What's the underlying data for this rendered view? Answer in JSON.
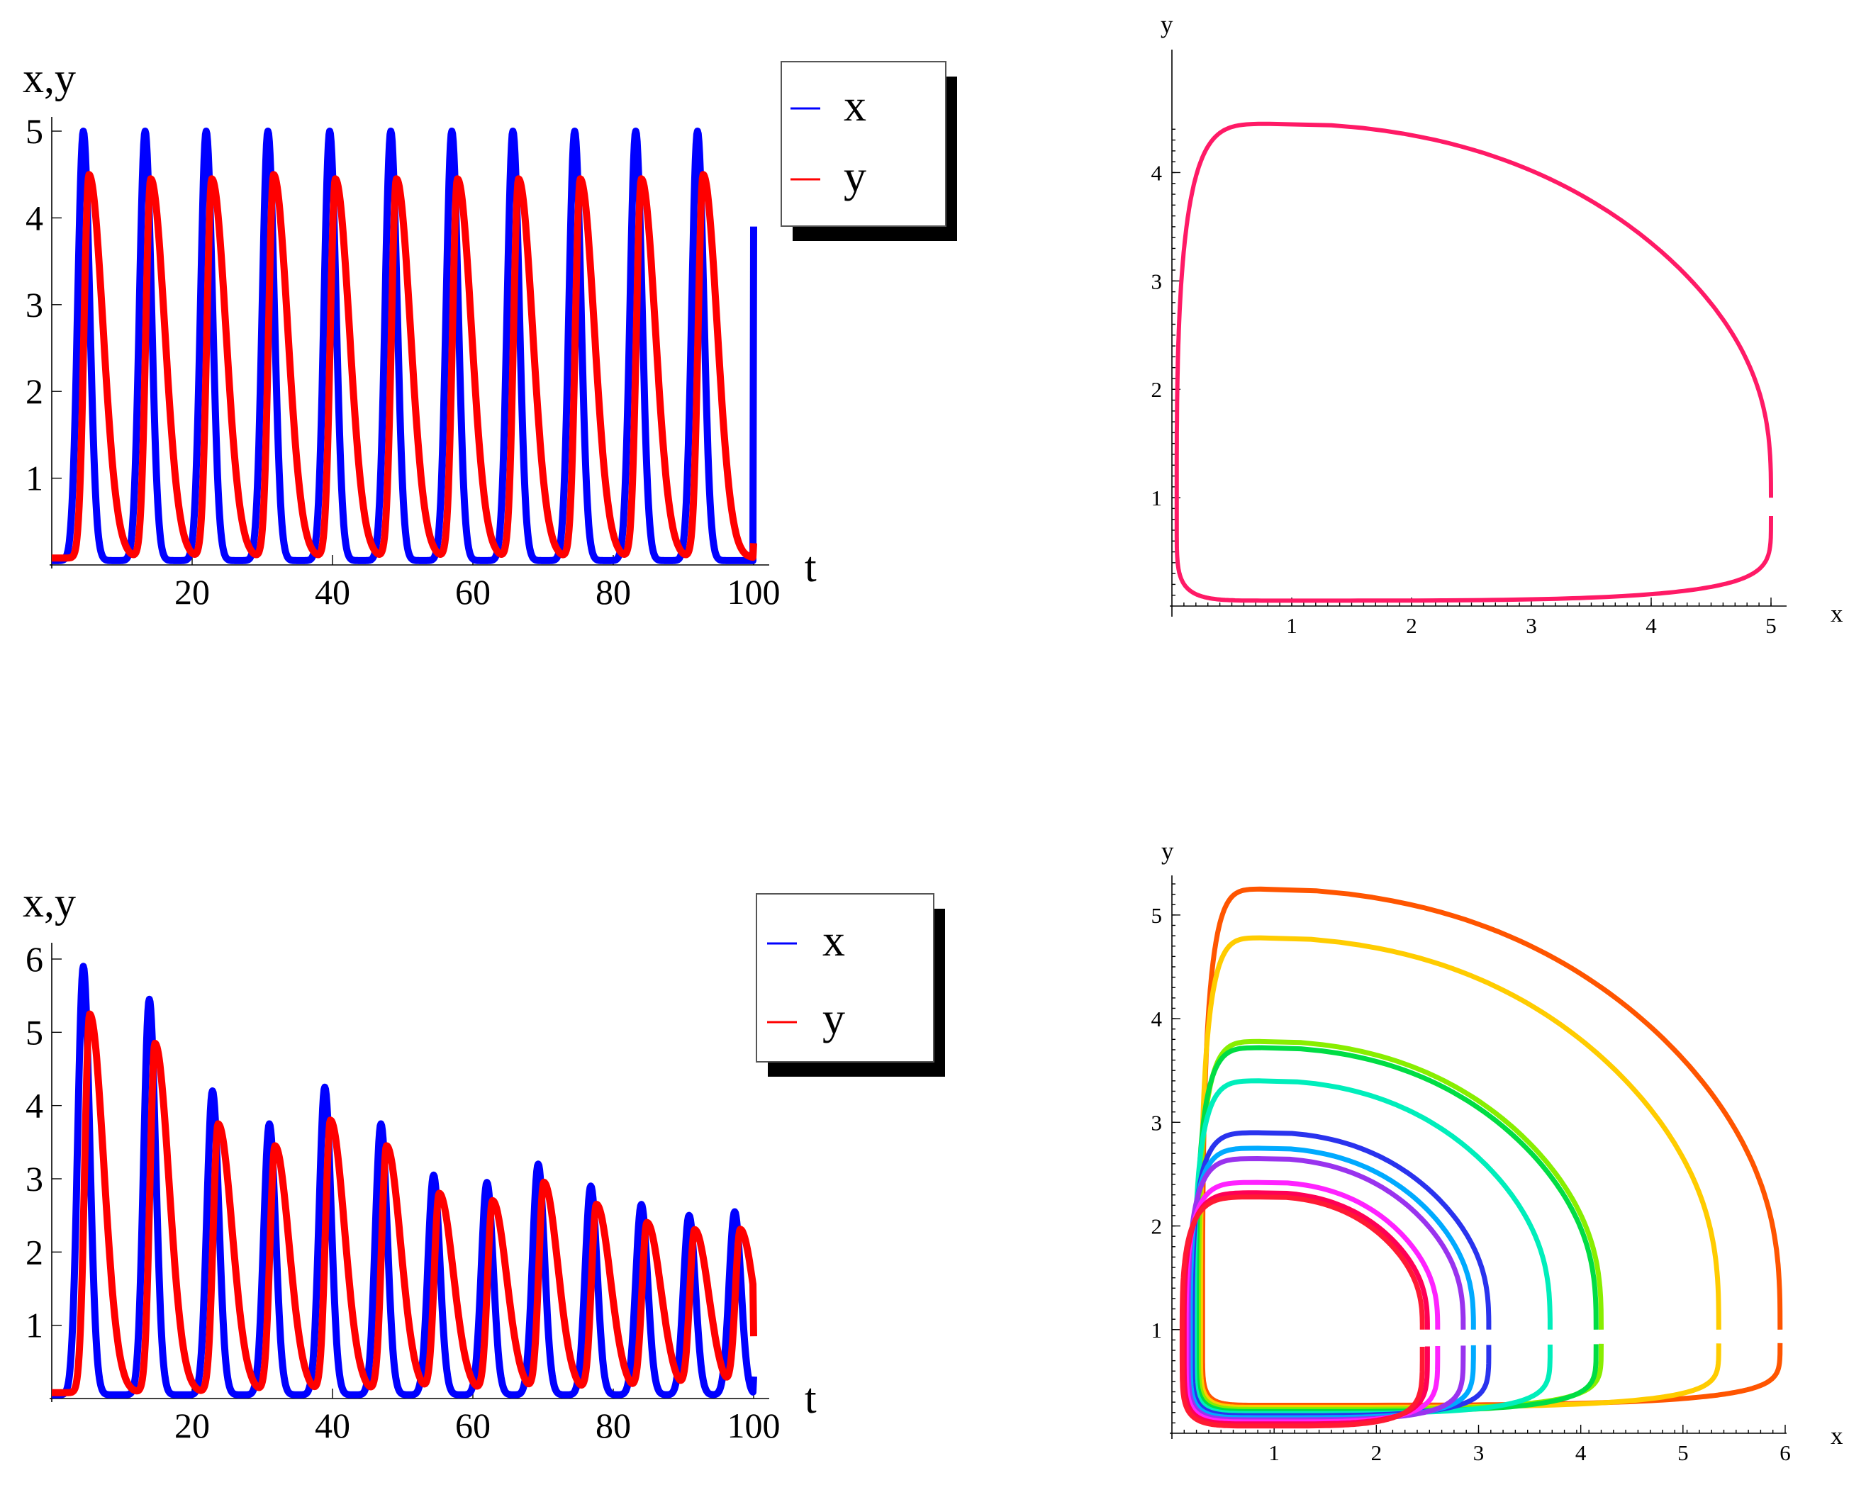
{
  "chart_data": [
    {
      "type": "line",
      "xlabel": "t",
      "ylabel": "x,y",
      "xlim": [
        0,
        100
      ],
      "ylim": [
        0,
        5
      ],
      "x_ticks": [
        "20",
        "40",
        "60",
        "80",
        "100"
      ],
      "y_ticks": [
        "1",
        "2",
        "3",
        "4",
        "5"
      ],
      "series": [
        {
          "name": "x",
          "color": "#0000ff",
          "peak_times": [
            4.5,
            13.3,
            22.0,
            30.8,
            39.6,
            48.3,
            57.0,
            65.7,
            74.5,
            83.2,
            92.0
          ],
          "peak_values": [
            5.0,
            5.0,
            5.0,
            5.0,
            5.0,
            5.0,
            5.0,
            5.0,
            5.0,
            5.0,
            5.0
          ],
          "end_value": 3.9
        },
        {
          "name": "y",
          "color": "#ff0000",
          "peak_times": [
            5.3,
            14.1,
            22.8,
            31.6,
            40.4,
            49.1,
            57.8,
            66.5,
            75.3,
            84.0,
            92.8
          ],
          "peak_values": [
            4.5,
            4.45,
            4.45,
            4.5,
            4.45,
            4.45,
            4.45,
            4.45,
            4.45,
            4.45,
            4.5
          ],
          "end_value": 0.25
        }
      ],
      "legend": [
        "x",
        "y"
      ],
      "legend_position": "top-right"
    },
    {
      "type": "line",
      "xlabel": "x",
      "ylabel": "y",
      "xlim": [
        0,
        5
      ],
      "ylim": [
        0,
        4.5
      ],
      "x_ticks": [
        "1",
        "2",
        "3",
        "4",
        "5"
      ],
      "y_ticks": [
        "1",
        "2",
        "3",
        "4"
      ],
      "series": [
        {
          "color": "#ff1a66",
          "x_max": 5.0,
          "y_max": 4.45,
          "x_min": 0.04,
          "y_min": 0.05
        }
      ]
    },
    {
      "type": "line",
      "xlabel": "t",
      "ylabel": "x,y",
      "xlim": [
        0,
        100
      ],
      "ylim": [
        0,
        6
      ],
      "x_ticks": [
        "20",
        "40",
        "60",
        "80",
        "100"
      ],
      "y_ticks": [
        "1",
        "2",
        "3",
        "4",
        "5",
        "6"
      ],
      "series": [
        {
          "name": "x",
          "color": "#0000ff",
          "peak_times": [
            4.5,
            13.9,
            22.9,
            31.0,
            38.9,
            46.9,
            54.4,
            62.0,
            69.3,
            76.8,
            84.0,
            90.8,
            97.3
          ],
          "peak_values": [
            5.9,
            5.45,
            4.2,
            3.75,
            4.25,
            3.75,
            3.05,
            2.95,
            3.2,
            2.9,
            2.65,
            2.5,
            2.55
          ],
          "end_value": 0.3
        },
        {
          "name": "y",
          "color": "#ff0000",
          "peak_times": [
            5.4,
            14.7,
            23.7,
            31.8,
            39.7,
            47.7,
            55.2,
            62.8,
            70.1,
            77.6,
            84.8,
            91.6,
            98.1
          ],
          "peak_values": [
            5.25,
            4.85,
            3.75,
            3.45,
            3.8,
            3.45,
            2.8,
            2.7,
            2.95,
            2.65,
            2.4,
            2.3,
            2.3
          ],
          "end_value": 0.85
        }
      ],
      "legend": [
        "x",
        "y"
      ],
      "legend_position": "top-right"
    },
    {
      "type": "line",
      "xlabel": "x",
      "ylabel": "y",
      "xlim": [
        0,
        6
      ],
      "ylim": [
        0,
        5.3
      ],
      "x_ticks": [
        "1",
        "2",
        "3",
        "4",
        "5",
        "6"
      ],
      "y_ticks": [
        "1",
        "2",
        "3",
        "4",
        "5"
      ],
      "series": [
        {
          "color": "#ff5500",
          "x_max": 5.95,
          "y_max": 5.25
        },
        {
          "color": "#ffcc00",
          "x_max": 5.35,
          "y_max": 4.78
        },
        {
          "color": "#88ee00",
          "x_max": 4.2,
          "y_max": 3.78
        },
        {
          "color": "#00dd44",
          "x_max": 4.15,
          "y_max": 3.72
        },
        {
          "color": "#00eebb",
          "x_max": 3.7,
          "y_max": 3.4
        },
        {
          "color": "#2a33ee",
          "x_max": 3.1,
          "y_max": 2.9
        },
        {
          "color": "#00aaff",
          "x_max": 2.95,
          "y_max": 2.75
        },
        {
          "color": "#9933ee",
          "x_max": 2.85,
          "y_max": 2.65
        },
        {
          "color": "#ff22ff",
          "x_max": 2.6,
          "y_max": 2.42
        },
        {
          "color": "#ff0055",
          "x_max": 2.5,
          "y_max": 2.32
        },
        {
          "color": "#ff1a33",
          "x_max": 2.45,
          "y_max": 2.28
        }
      ]
    }
  ]
}
